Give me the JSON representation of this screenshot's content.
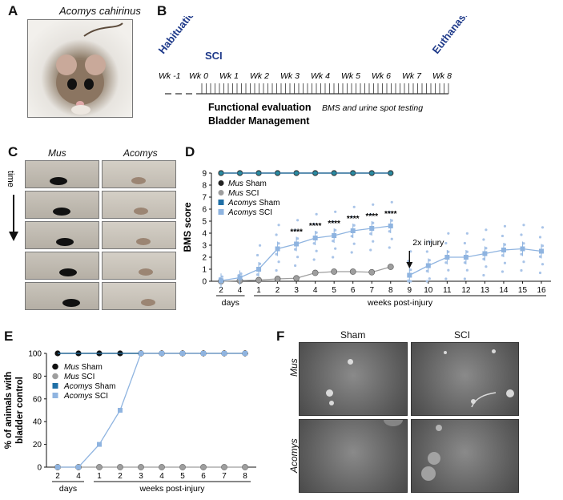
{
  "panels": {
    "A": {
      "label": "A",
      "title": "Acomys cahirinus"
    },
    "B": {
      "label": "B",
      "events": {
        "habituation": "Habituation",
        "sci": "SCI",
        "euthanasia": "Euthanasia"
      },
      "weeks": [
        "Wk -1",
        "Wk 0",
        "Wk 1",
        "Wk 2",
        "Wk 3",
        "Wk 4",
        "Wk 5",
        "Wk 6",
        "Wk 7",
        "Wk 8"
      ],
      "functional_bold": "Functional evaluation",
      "functional_italic": "BMS and urine spot testing",
      "bladder": "Bladder Management",
      "event_color": "#1f3a8a"
    },
    "C": {
      "label": "C",
      "col1": "Mus",
      "col2": "Acomys",
      "time": "time"
    },
    "D": {
      "label": "D",
      "injury_note": "2x injury"
    },
    "E": {
      "label": "E"
    },
    "F": {
      "label": "F",
      "col1": "Sham",
      "col2": "SCI",
      "row1": "Mus",
      "row2": "Acomys"
    }
  },
  "chart_data": [
    {
      "type": "line",
      "panel": "D",
      "ylabel": "BMS score",
      "ylim": [
        0,
        9
      ],
      "yticks": [
        "0",
        "1",
        "2",
        "3",
        "4",
        "5",
        "6",
        "7",
        "8",
        "9"
      ],
      "x_ticks": [
        "2",
        "4",
        "1",
        "2",
        "3",
        "4",
        "5",
        "6",
        "7",
        "8",
        "9",
        "10",
        "11",
        "12",
        "13",
        "14",
        "15",
        "16"
      ],
      "x_group_labels": [
        "days",
        "weeks post-injury"
      ],
      "significance": [
        {
          "x": "3",
          "label": "****"
        },
        {
          "x": "4",
          "label": "****"
        },
        {
          "x": "5",
          "label": "****"
        },
        {
          "x": "6",
          "label": "****"
        },
        {
          "x": "7",
          "label": "****"
        },
        {
          "x": "8",
          "label": "****"
        }
      ],
      "legend": [
        {
          "name": "Mus",
          "suffix": " Sham",
          "color": "#222222",
          "marker": "circle"
        },
        {
          "name": "Mus",
          "suffix": " SCI",
          "color": "#9e9e9e",
          "marker": "circle"
        },
        {
          "name": "Acomys",
          "suffix": " Sham",
          "color": "#1f6fa6",
          "marker": "square"
        },
        {
          "name": "Acomys",
          "suffix": " SCI",
          "color": "#8fb4e0",
          "marker": "square"
        }
      ],
      "series": [
        {
          "name": "Mus Sham",
          "x_index": [
            0,
            1,
            2,
            3,
            4,
            5,
            6,
            7,
            8,
            9
          ],
          "values": [
            9,
            9,
            9,
            9,
            9,
            9,
            9,
            9,
            9,
            9
          ]
        },
        {
          "name": "Acomys Sham",
          "x_index": [
            0,
            1,
            2,
            3,
            4,
            5,
            6,
            7,
            8,
            9
          ],
          "values": [
            9,
            9,
            9,
            9,
            9,
            9,
            9,
            9,
            9,
            9
          ]
        },
        {
          "name": "Mus SCI",
          "x_index": [
            0,
            1,
            2,
            3,
            4,
            5,
            6,
            7,
            8,
            9
          ],
          "values": [
            0,
            0.05,
            0.1,
            0.2,
            0.25,
            0.7,
            0.8,
            0.8,
            0.75,
            1.2
          ]
        },
        {
          "name": "Acomys SCI",
          "x_index": [
            0,
            1,
            2,
            3,
            4,
            5,
            6,
            7,
            8,
            9,
            10,
            11,
            12,
            13,
            14,
            15,
            16,
            17
          ],
          "values": [
            0.05,
            0.3,
            1.0,
            2.7,
            3.1,
            3.6,
            3.8,
            4.2,
            4.4,
            4.6,
            0.5,
            1.3,
            2.0,
            2.0,
            2.3,
            2.6,
            2.7,
            2.5
          ]
        }
      ]
    },
    {
      "type": "line",
      "panel": "E",
      "ylabel": "% of animals with bladder control",
      "ylim": [
        0,
        100
      ],
      "yticks": [
        "0",
        "20",
        "40",
        "60",
        "80",
        "100"
      ],
      "x_ticks": [
        "2",
        "4",
        "1",
        "2",
        "3",
        "4",
        "5",
        "6",
        "7",
        "8"
      ],
      "x_group_labels": [
        "days",
        "weeks post-injury"
      ],
      "legend": [
        {
          "name": "Mus",
          "suffix": " Sham",
          "color": "#111111",
          "marker": "circle"
        },
        {
          "name": "Mus",
          "suffix": " SCI",
          "color": "#9e9e9e",
          "marker": "circle"
        },
        {
          "name": "Acomys",
          "suffix": " Sham",
          "color": "#1f6fa6",
          "marker": "square"
        },
        {
          "name": "Acomys",
          "suffix": " SCI",
          "color": "#8fb4e0",
          "marker": "square"
        }
      ],
      "series": [
        {
          "name": "Mus Sham",
          "values": [
            100,
            100,
            100,
            100,
            100,
            100,
            100,
            100,
            100,
            100
          ]
        },
        {
          "name": "Acomys Sham",
          "values": [
            100,
            100,
            100,
            100,
            100,
            100,
            100,
            100,
            100,
            100
          ]
        },
        {
          "name": "Mus SCI",
          "values": [
            0,
            0,
            0,
            0,
            0,
            0,
            0,
            0,
            0,
            0
          ]
        },
        {
          "name": "Acomys SCI",
          "values": [
            0,
            0,
            20,
            50,
            100,
            100,
            100,
            100,
            100,
            100
          ]
        }
      ]
    }
  ]
}
